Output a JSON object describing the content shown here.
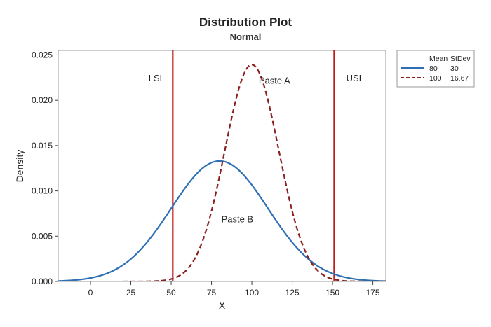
{
  "chart_data": {
    "type": "line",
    "title": "Distribution Plot",
    "subtitle": "Normal",
    "xlabel": "X",
    "ylabel": "Density",
    "xlim": [
      -20,
      183
    ],
    "ylim": [
      0,
      0.0255
    ],
    "x_ticks": [
      {
        "value": 0,
        "label": "0"
      },
      {
        "value": 25,
        "label": "25"
      },
      {
        "value": 50,
        "label": "50"
      },
      {
        "value": 75,
        "label": "75"
      },
      {
        "value": 100,
        "label": "100"
      },
      {
        "value": 125,
        "label": "125"
      },
      {
        "value": 150,
        "label": "150"
      },
      {
        "value": 175,
        "label": "175"
      }
    ],
    "y_ticks": [
      {
        "value": 0,
        "label": "0.000"
      },
      {
        "value": 0.005,
        "label": "0.005"
      },
      {
        "value": 0.01,
        "label": "0.010"
      },
      {
        "value": 0.015,
        "label": "0.015"
      },
      {
        "value": 0.02,
        "label": "0.020"
      },
      {
        "value": 0.025,
        "label": "0.025"
      }
    ],
    "grid": false,
    "legend": {
      "position": "right",
      "header_mean": "Mean",
      "header_stdev": "StDev",
      "entries": [
        {
          "mean": "80",
          "stdev": "30",
          "color": "#2e6fb5",
          "dash": "solid"
        },
        {
          "mean": "100",
          "stdev": "16.67",
          "color": "#8b1f1f",
          "dash": "dashed"
        }
      ]
    },
    "series": [
      {
        "distribution": "normal",
        "mean": 80,
        "stdev": 30,
        "color": "#2e6fb5",
        "dash": "solid",
        "x_range": [
          -20,
          183
        ]
      },
      {
        "distribution": "normal",
        "mean": 100,
        "stdev": 16.67,
        "color": "#8b1f1f",
        "dash": "dashed",
        "x_range": [
          20,
          183
        ]
      }
    ],
    "spec_limits": [
      {
        "label": "LSL",
        "x": 51,
        "color": "#c01d1d"
      },
      {
        "label": "USL",
        "x": 151,
        "color": "#c01d1d"
      }
    ],
    "annotations": [
      {
        "text": "Paste A",
        "x": 114,
        "y": 0.0222
      },
      {
        "text": "Paste B",
        "x": 91,
        "y": 0.0069
      },
      {
        "text": "LSL",
        "x": 41,
        "y": 0.0225
      },
      {
        "text": "USL",
        "x": 164,
        "y": 0.0225
      }
    ]
  }
}
